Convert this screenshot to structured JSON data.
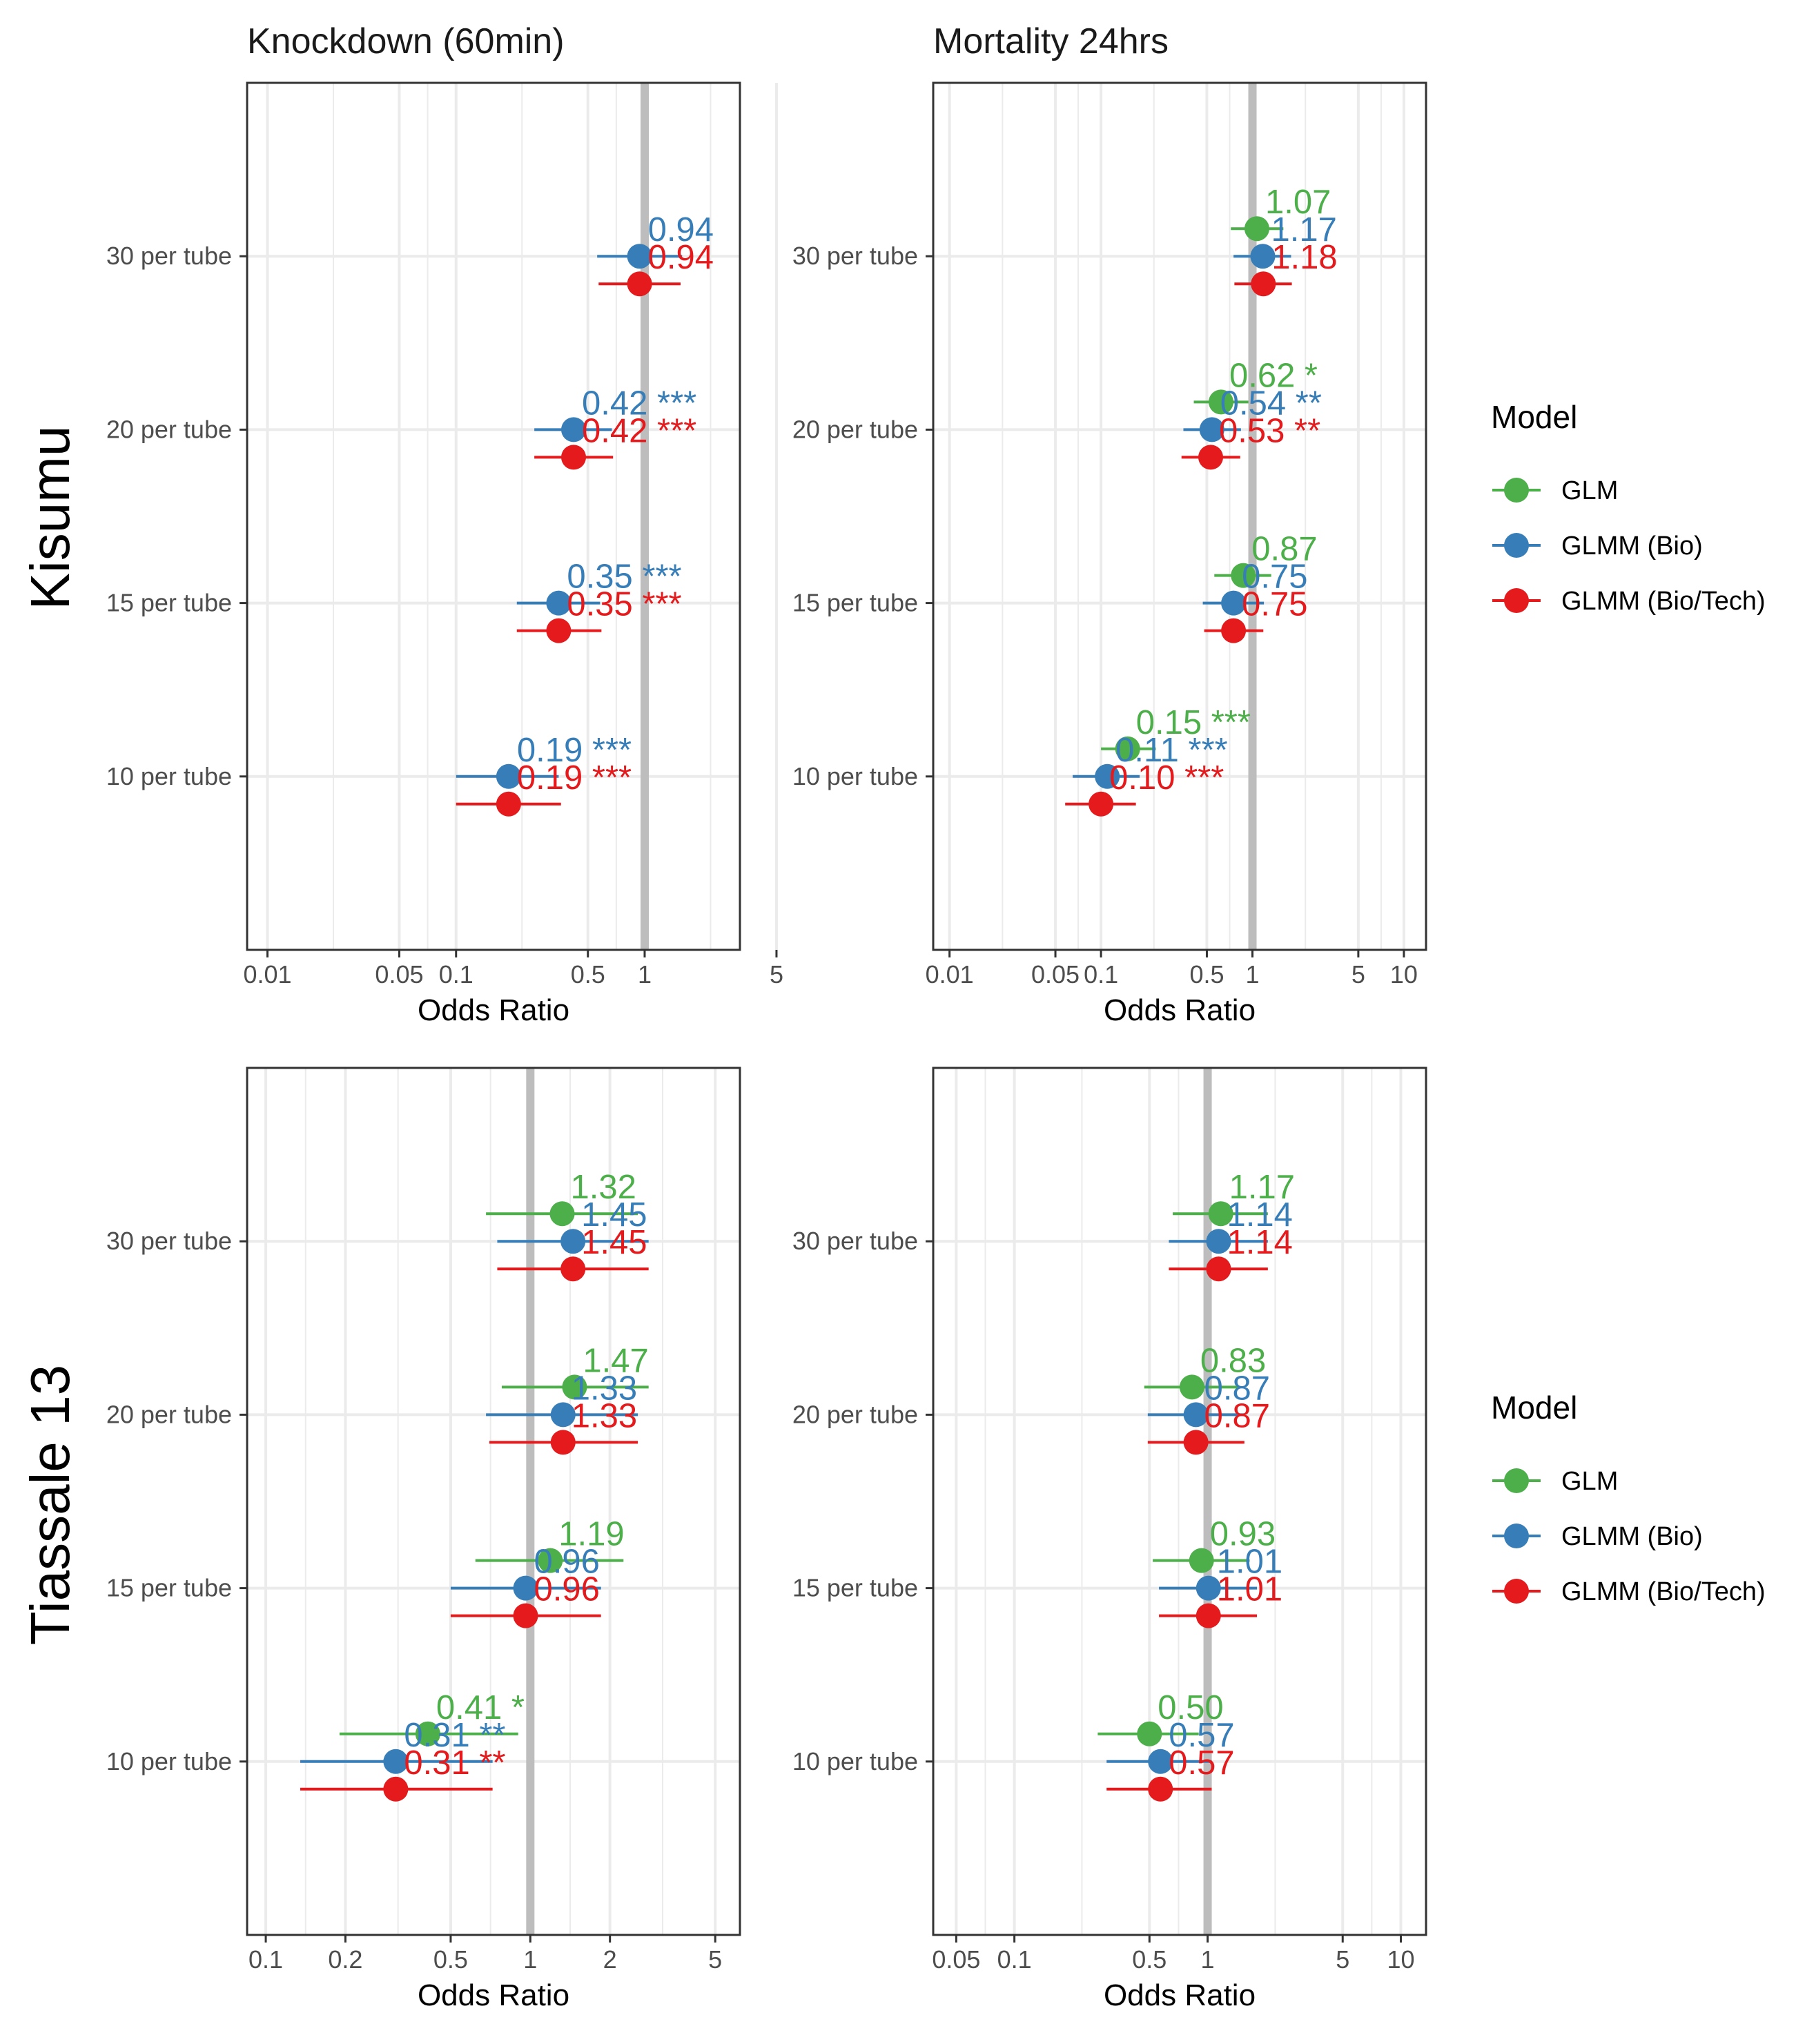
{
  "colors": {
    "GLM": "#4daf4a",
    "GLMM (Bio)": "#377eb8",
    "GLMM (Bio/Tech)": "#e41a1c",
    "ref_line": "#bdbdbd",
    "grid": "#ebebeb",
    "panel_border": "#333333"
  },
  "column_titles": [
    "Knockdown (60min)",
    "Mortality 24hrs"
  ],
  "row_titles": [
    "Kisumu",
    "Tiassale 13"
  ],
  "legend": {
    "title": "Model",
    "entries": [
      "GLM",
      "GLMM (Bio)",
      "GLMM (Bio/Tech)"
    ]
  },
  "chart_data": [
    {
      "type": "forest",
      "row": "Kisumu",
      "column": "Knockdown (60min)",
      "xlabel": "Odds Ratio",
      "xscale": "log",
      "xlim": [
        0.0078,
        3.2
      ],
      "reference": 1,
      "xticks": [
        0.01,
        0.05,
        0.1,
        0.5,
        1,
        5
      ],
      "xtick_labels": [
        "0.01",
        "0.05",
        "0.1",
        "0.5",
        "1",
        "5"
      ],
      "categories": [
        "10 per tube",
        "15 per tube",
        "20 per tube",
        "30 per tube"
      ],
      "series": [
        {
          "name": "GLMM (Bio)",
          "points": [
            {
              "cat": "30 per tube",
              "or": 0.94,
              "lo": 0.56,
              "hi": 1.58,
              "label": "0.94"
            },
            {
              "cat": "20 per tube",
              "or": 0.42,
              "lo": 0.26,
              "hi": 0.67,
              "label": "0.42 ***"
            },
            {
              "cat": "15 per tube",
              "or": 0.35,
              "lo": 0.21,
              "hi": 0.58,
              "label": "0.35 ***"
            },
            {
              "cat": "10 per tube",
              "or": 0.19,
              "lo": 0.1,
              "hi": 0.35,
              "label": "0.19 ***"
            }
          ]
        },
        {
          "name": "GLMM (Bio/Tech)",
          "points": [
            {
              "cat": "30 per tube",
              "or": 0.94,
              "lo": 0.57,
              "hi": 1.55,
              "label": "0.94"
            },
            {
              "cat": "20 per tube",
              "or": 0.42,
              "lo": 0.26,
              "hi": 0.68,
              "label": "0.42 ***"
            },
            {
              "cat": "15 per tube",
              "or": 0.35,
              "lo": 0.21,
              "hi": 0.59,
              "label": "0.35 ***"
            },
            {
              "cat": "10 per tube",
              "or": 0.19,
              "lo": 0.1,
              "hi": 0.36,
              "label": "0.19 ***"
            }
          ]
        }
      ]
    },
    {
      "type": "forest",
      "row": "Kisumu",
      "column": "Mortality 24hrs",
      "xlabel": "Odds Ratio",
      "xscale": "log",
      "xlim": [
        0.0078,
        14
      ],
      "reference": 1,
      "xticks": [
        0.01,
        0.05,
        0.1,
        0.5,
        1,
        5,
        10
      ],
      "xtick_labels": [
        "0.01",
        "0.05",
        "0.1",
        "0.5",
        "1",
        "5",
        "10"
      ],
      "categories": [
        "10 per tube",
        "15 per tube",
        "20 per tube",
        "30 per tube"
      ],
      "series": [
        {
          "name": "GLM",
          "points": [
            {
              "cat": "30 per tube",
              "or": 1.07,
              "lo": 0.72,
              "hi": 1.6,
              "label": "1.07"
            },
            {
              "cat": "20 per tube",
              "or": 0.62,
              "lo": 0.41,
              "hi": 0.94,
              "label": "0.62 *"
            },
            {
              "cat": "15 per tube",
              "or": 0.87,
              "lo": 0.56,
              "hi": 1.33,
              "label": "0.87"
            },
            {
              "cat": "10 per tube",
              "or": 0.15,
              "lo": 0.1,
              "hi": 0.23,
              "label": "0.15 ***"
            }
          ]
        },
        {
          "name": "GLMM (Bio)",
          "points": [
            {
              "cat": "30 per tube",
              "or": 1.17,
              "lo": 0.75,
              "hi": 1.8,
              "label": "1.17"
            },
            {
              "cat": "20 per tube",
              "or": 0.54,
              "lo": 0.35,
              "hi": 0.84,
              "label": "0.54 **"
            },
            {
              "cat": "15 per tube",
              "or": 0.75,
              "lo": 0.47,
              "hi": 1.19,
              "label": "0.75"
            },
            {
              "cat": "10 per tube",
              "or": 0.11,
              "lo": 0.065,
              "hi": 0.18,
              "label": "0.11 ***"
            }
          ]
        },
        {
          "name": "GLMM (Bio/Tech)",
          "points": [
            {
              "cat": "30 per tube",
              "or": 1.18,
              "lo": 0.76,
              "hi": 1.82,
              "label": "1.18"
            },
            {
              "cat": "20 per tube",
              "or": 0.53,
              "lo": 0.34,
              "hi": 0.83,
              "label": "0.53 **"
            },
            {
              "cat": "15 per tube",
              "or": 0.75,
              "lo": 0.48,
              "hi": 1.18,
              "label": "0.75"
            },
            {
              "cat": "10 per tube",
              "or": 0.1,
              "lo": 0.058,
              "hi": 0.17,
              "label": "0.10 ***"
            }
          ]
        }
      ]
    },
    {
      "type": "forest",
      "row": "Tiassale 13",
      "column": "Knockdown (60min)",
      "xlabel": "Odds Ratio",
      "xscale": "log",
      "xlim": [
        0.085,
        6.2
      ],
      "reference": 1,
      "xticks": [
        0.1,
        0.2,
        0.5,
        1,
        2,
        5
      ],
      "xtick_labels": [
        "0.1",
        "0.2",
        "0.5",
        "1",
        "2",
        "5"
      ],
      "categories": [
        "10 per tube",
        "15 per tube",
        "20 per tube",
        "30 per tube"
      ],
      "series": [
        {
          "name": "GLM",
          "points": [
            {
              "cat": "30 per tube",
              "or": 1.32,
              "lo": 0.68,
              "hi": 2.55,
              "label": "1.32"
            },
            {
              "cat": "20 per tube",
              "or": 1.47,
              "lo": 0.78,
              "hi": 2.8,
              "label": "1.47"
            },
            {
              "cat": "15 per tube",
              "or": 1.19,
              "lo": 0.62,
              "hi": 2.25,
              "label": "1.19"
            },
            {
              "cat": "10 per tube",
              "or": 0.41,
              "lo": 0.19,
              "hi": 0.9,
              "label": "0.41 *"
            }
          ]
        },
        {
          "name": "GLMM (Bio)",
          "points": [
            {
              "cat": "30 per tube",
              "or": 1.45,
              "lo": 0.75,
              "hi": 2.8,
              "label": "1.45"
            },
            {
              "cat": "20 per tube",
              "or": 1.33,
              "lo": 0.68,
              "hi": 2.55,
              "label": "1.33"
            },
            {
              "cat": "15 per tube",
              "or": 0.96,
              "lo": 0.5,
              "hi": 1.85,
              "label": "0.96"
            },
            {
              "cat": "10 per tube",
              "or": 0.31,
              "lo": 0.135,
              "hi": 0.72,
              "label": "0.31 **"
            }
          ]
        },
        {
          "name": "GLMM (Bio/Tech)",
          "points": [
            {
              "cat": "30 per tube",
              "or": 1.45,
              "lo": 0.75,
              "hi": 2.8,
              "label": "1.45"
            },
            {
              "cat": "20 per tube",
              "or": 1.33,
              "lo": 0.7,
              "hi": 2.55,
              "label": "1.33"
            },
            {
              "cat": "15 per tube",
              "or": 0.96,
              "lo": 0.5,
              "hi": 1.85,
              "label": "0.96"
            },
            {
              "cat": "10 per tube",
              "or": 0.31,
              "lo": 0.135,
              "hi": 0.72,
              "label": "0.31 **"
            }
          ]
        }
      ]
    },
    {
      "type": "forest",
      "row": "Tiassale 13",
      "column": "Mortality 24hrs",
      "xlabel": "Odds Ratio",
      "xscale": "log",
      "xlim": [
        0.038,
        13.5
      ],
      "reference": 1,
      "xticks": [
        0.05,
        0.1,
        0.5,
        1,
        5,
        10
      ],
      "xtick_labels": [
        "0.05",
        "0.1",
        "0.5",
        "1",
        "5",
        "10"
      ],
      "categories": [
        "10 per tube",
        "15 per tube",
        "20 per tube",
        "30 per tube"
      ],
      "series": [
        {
          "name": "GLM",
          "points": [
            {
              "cat": "30 per tube",
              "or": 1.17,
              "lo": 0.66,
              "hi": 2.05,
              "label": "1.17"
            },
            {
              "cat": "20 per tube",
              "or": 0.83,
              "lo": 0.47,
              "hi": 1.45,
              "label": "0.83"
            },
            {
              "cat": "15 per tube",
              "or": 0.93,
              "lo": 0.52,
              "hi": 1.65,
              "label": "0.93"
            },
            {
              "cat": "10 per tube",
              "or": 0.5,
              "lo": 0.27,
              "hi": 0.9,
              "label": "0.50"
            }
          ]
        },
        {
          "name": "GLMM (Bio)",
          "points": [
            {
              "cat": "30 per tube",
              "or": 1.14,
              "lo": 0.63,
              "hi": 2.05,
              "label": "1.14"
            },
            {
              "cat": "20 per tube",
              "or": 0.87,
              "lo": 0.49,
              "hi": 1.55,
              "label": "0.87"
            },
            {
              "cat": "15 per tube",
              "or": 1.01,
              "lo": 0.56,
              "hi": 1.8,
              "label": "1.01"
            },
            {
              "cat": "10 per tube",
              "or": 0.57,
              "lo": 0.3,
              "hi": 1.05,
              "label": "0.57"
            }
          ]
        },
        {
          "name": "GLMM (Bio/Tech)",
          "points": [
            {
              "cat": "30 per tube",
              "or": 1.14,
              "lo": 0.63,
              "hi": 2.05,
              "label": "1.14"
            },
            {
              "cat": "20 per tube",
              "or": 0.87,
              "lo": 0.49,
              "hi": 1.55,
              "label": "0.87"
            },
            {
              "cat": "15 per tube",
              "or": 1.01,
              "lo": 0.56,
              "hi": 1.8,
              "label": "1.01"
            },
            {
              "cat": "10 per tube",
              "or": 0.57,
              "lo": 0.3,
              "hi": 1.05,
              "label": "0.57"
            }
          ]
        }
      ]
    }
  ]
}
